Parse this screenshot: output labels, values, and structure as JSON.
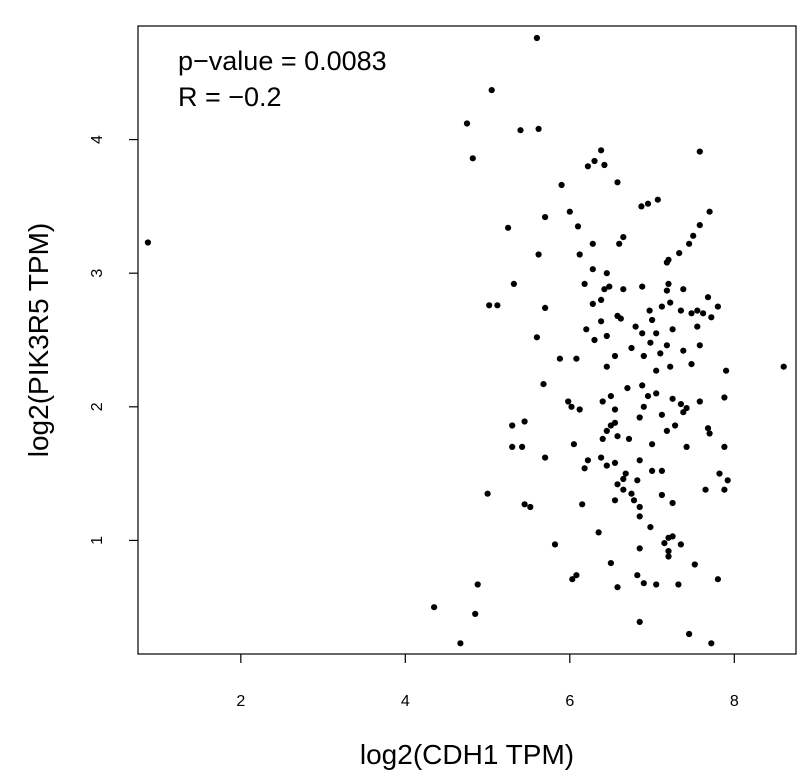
{
  "chart_data": {
    "type": "scatter",
    "xlabel": "log2(CDH1 TPM)",
    "ylabel": "log2(PIK3R5 TPM)",
    "annotations": [
      "p−value = 0.0083",
      "R = −0.2"
    ],
    "xlim": [
      0.75,
      8.75
    ],
    "ylim": [
      0.15,
      4.85
    ],
    "xticks": [
      "2",
      "4",
      "6",
      "8"
    ],
    "yticks": [
      "1",
      "2",
      "3",
      "4"
    ],
    "grid": false,
    "legend": "none",
    "point_color": "#000000",
    "points": [
      [
        0.87,
        3.23
      ],
      [
        8.6,
        2.3
      ],
      [
        5.6,
        4.76
      ],
      [
        5.05,
        4.37
      ],
      [
        4.75,
        4.12
      ],
      [
        5.4,
        4.07
      ],
      [
        5.62,
        4.08
      ],
      [
        4.82,
        3.86
      ],
      [
        6.38,
        3.92
      ],
      [
        6.42,
        3.81
      ],
      [
        6.22,
        3.8
      ],
      [
        6.3,
        3.84
      ],
      [
        7.58,
        3.91
      ],
      [
        5.9,
        3.66
      ],
      [
        6.58,
        3.68
      ],
      [
        6.95,
        3.52
      ],
      [
        7.07,
        3.55
      ],
      [
        6.87,
        3.5
      ],
      [
        5.7,
        3.42
      ],
      [
        6.0,
        3.46
      ],
      [
        7.7,
        3.46
      ],
      [
        6.1,
        3.35
      ],
      [
        7.58,
        3.36
      ],
      [
        5.25,
        3.34
      ],
      [
        6.65,
        3.27
      ],
      [
        6.28,
        3.22
      ],
      [
        6.6,
        3.22
      ],
      [
        7.5,
        3.28
      ],
      [
        7.45,
        3.22
      ],
      [
        5.62,
        3.14
      ],
      [
        7.2,
        3.1
      ],
      [
        7.18,
        3.08
      ],
      [
        7.33,
        3.15
      ],
      [
        6.12,
        3.14
      ],
      [
        6.28,
        3.03
      ],
      [
        6.45,
        3.0
      ],
      [
        5.32,
        2.92
      ],
      [
        6.42,
        2.88
      ],
      [
        6.48,
        2.9
      ],
      [
        6.88,
        2.9
      ],
      [
        6.18,
        2.92
      ],
      [
        6.65,
        2.88
      ],
      [
        7.2,
        2.92
      ],
      [
        7.18,
        2.87
      ],
      [
        7.38,
        2.88
      ],
      [
        7.68,
        2.82
      ],
      [
        5.02,
        2.76
      ],
      [
        5.12,
        2.76
      ],
      [
        5.7,
        2.74
      ],
      [
        6.28,
        2.77
      ],
      [
        6.38,
        2.8
      ],
      [
        6.58,
        2.68
      ],
      [
        6.62,
        2.66
      ],
      [
        6.97,
        2.72
      ],
      [
        7.12,
        2.75
      ],
      [
        7.22,
        2.78
      ],
      [
        7.35,
        2.72
      ],
      [
        7.48,
        2.7
      ],
      [
        7.55,
        2.72
      ],
      [
        7.62,
        2.7
      ],
      [
        7.8,
        2.75
      ],
      [
        7.72,
        2.67
      ],
      [
        7.0,
        2.65
      ],
      [
        6.38,
        2.64
      ],
      [
        6.2,
        2.58
      ],
      [
        6.8,
        2.6
      ],
      [
        7.05,
        2.55
      ],
      [
        7.55,
        2.6
      ],
      [
        7.25,
        2.58
      ],
      [
        5.6,
        2.52
      ],
      [
        6.3,
        2.5
      ],
      [
        6.45,
        2.53
      ],
      [
        6.88,
        2.55
      ],
      [
        6.98,
        2.48
      ],
      [
        7.18,
        2.46
      ],
      [
        7.38,
        2.42
      ],
      [
        7.58,
        2.46
      ],
      [
        6.75,
        2.44
      ],
      [
        6.55,
        2.38
      ],
      [
        6.08,
        2.36
      ],
      [
        6.9,
        2.38
      ],
      [
        7.1,
        2.4
      ],
      [
        5.88,
        2.36
      ],
      [
        7.48,
        2.32
      ],
      [
        6.45,
        2.3
      ],
      [
        7.05,
        2.27
      ],
      [
        7.22,
        2.3
      ],
      [
        7.9,
        2.27
      ],
      [
        5.68,
        2.17
      ],
      [
        6.7,
        2.14
      ],
      [
        6.88,
        2.16
      ],
      [
        6.5,
        2.08
      ],
      [
        6.95,
        2.08
      ],
      [
        7.05,
        2.1
      ],
      [
        7.25,
        2.06
      ],
      [
        7.35,
        2.02
      ],
      [
        7.88,
        2.07
      ],
      [
        5.98,
        2.04
      ],
      [
        6.02,
        2.0
      ],
      [
        6.12,
        1.98
      ],
      [
        6.4,
        2.04
      ],
      [
        6.55,
        1.98
      ],
      [
        6.85,
        1.92
      ],
      [
        6.9,
        2.0
      ],
      [
        7.12,
        1.94
      ],
      [
        7.38,
        1.96
      ],
      [
        7.42,
        1.99
      ],
      [
        7.58,
        2.04
      ],
      [
        5.3,
        1.86
      ],
      [
        5.45,
        1.89
      ],
      [
        6.45,
        1.82
      ],
      [
        6.5,
        1.86
      ],
      [
        6.55,
        1.88
      ],
      [
        6.72,
        1.76
      ],
      [
        7.18,
        1.82
      ],
      [
        7.28,
        1.86
      ],
      [
        7.68,
        1.84
      ],
      [
        7.7,
        1.8
      ],
      [
        5.3,
        1.7
      ],
      [
        5.42,
        1.7
      ],
      [
        6.05,
        1.72
      ],
      [
        6.4,
        1.76
      ],
      [
        6.58,
        1.78
      ],
      [
        7.0,
        1.72
      ],
      [
        7.42,
        1.7
      ],
      [
        7.88,
        1.7
      ],
      [
        5.7,
        1.62
      ],
      [
        6.22,
        1.6
      ],
      [
        6.38,
        1.62
      ],
      [
        6.45,
        1.56
      ],
      [
        6.55,
        1.58
      ],
      [
        6.85,
        1.6
      ],
      [
        7.12,
        1.52
      ],
      [
        7.0,
        1.52
      ],
      [
        6.18,
        1.54
      ],
      [
        6.68,
        1.5
      ],
      [
        7.82,
        1.5
      ],
      [
        7.92,
        1.45
      ],
      [
        6.58,
        1.42
      ],
      [
        6.65,
        1.46
      ],
      [
        6.82,
        1.45
      ],
      [
        6.65,
        1.38
      ],
      [
        7.65,
        1.38
      ],
      [
        7.88,
        1.38
      ],
      [
        5.0,
        1.35
      ],
      [
        6.75,
        1.35
      ],
      [
        7.12,
        1.34
      ],
      [
        6.55,
        1.3
      ],
      [
        6.78,
        1.3
      ],
      [
        7.25,
        1.28
      ],
      [
        6.85,
        1.25
      ],
      [
        5.45,
        1.27
      ],
      [
        5.52,
        1.25
      ],
      [
        6.15,
        1.27
      ],
      [
        6.85,
        1.18
      ],
      [
        6.98,
        1.1
      ],
      [
        6.35,
        1.06
      ],
      [
        7.2,
        1.02
      ],
      [
        7.25,
        1.03
      ],
      [
        7.15,
        0.98
      ],
      [
        7.2,
        0.92
      ],
      [
        7.35,
        0.97
      ],
      [
        5.82,
        0.97
      ],
      [
        6.85,
        0.94
      ],
      [
        7.2,
        0.88
      ],
      [
        7.52,
        0.82
      ],
      [
        6.5,
        0.83
      ],
      [
        6.08,
        0.74
      ],
      [
        6.03,
        0.71
      ],
      [
        6.82,
        0.74
      ],
      [
        6.9,
        0.68
      ],
      [
        7.05,
        0.67
      ],
      [
        7.32,
        0.67
      ],
      [
        7.8,
        0.71
      ],
      [
        4.88,
        0.67
      ],
      [
        6.58,
        0.65
      ],
      [
        4.35,
        0.5
      ],
      [
        4.85,
        0.45
      ],
      [
        6.85,
        0.39
      ],
      [
        7.45,
        0.3
      ],
      [
        4.67,
        0.23
      ],
      [
        7.72,
        0.23
      ]
    ]
  }
}
